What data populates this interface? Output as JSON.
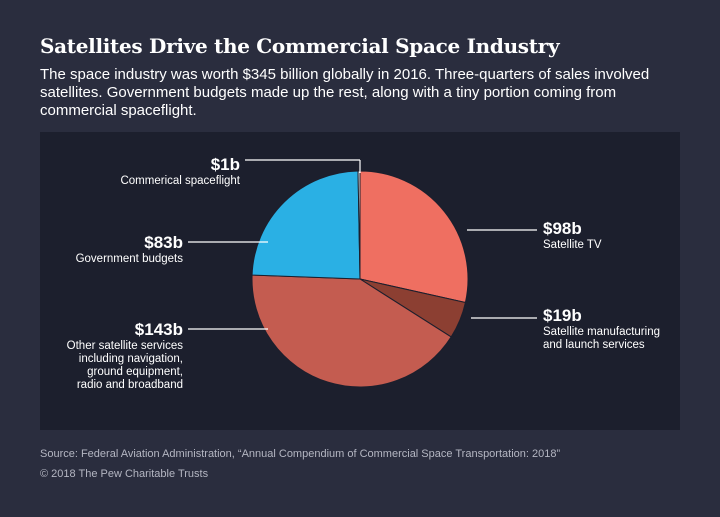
{
  "title": "Satellites Drive the Commercial Space Industry",
  "subtitle": "The space industry was worth $345 billion globally in 2016. Three-quarters of sales involved satellites. Government budgets made up the rest, along with a tiny portion coming from commercial spaceflight.",
  "source": "Source: Federal Aviation Administration, “Annual Compendium of Commercial Space Transportation: 2018”",
  "copyright": "© 2018 The Pew Charitable Trusts",
  "chart_data": {
    "type": "pie",
    "unit": "billion USD",
    "total": 345,
    "slices": [
      {
        "value_label": "$98b",
        "description": "Satellite TV",
        "value": 98,
        "color": "#ef6f61"
      },
      {
        "value_label": "$19b",
        "description": "Satellite manufacturing and launch services",
        "value": 19,
        "color": "#8c3f32"
      },
      {
        "value_label": "$143b",
        "description": "Other satellite services including navigation, ground equipment, radio and broadband",
        "value": 143,
        "color": "#c45c50"
      },
      {
        "value_label": "$83b",
        "description": "Government budgets",
        "value": 83,
        "color": "#2ab0e4"
      },
      {
        "value_label": "$1b",
        "description": "Commerical spaceflight",
        "value": 1,
        "color": "#e9ecef"
      }
    ]
  },
  "labels": {
    "satellite_tv": {
      "value": "$98b",
      "lines": [
        "Satellite TV"
      ]
    },
    "manufacturing": {
      "value": "$19b",
      "lines": [
        "Satellite manufacturing",
        "and launch services"
      ]
    },
    "other_services": {
      "value": "$143b",
      "lines": [
        "Other satellite services",
        "including navigation,",
        "ground equipment,",
        "radio and broadband"
      ]
    },
    "government": {
      "value": "$83b",
      "lines": [
        "Government budgets"
      ]
    },
    "spaceflight": {
      "value": "$1b",
      "lines": [
        "Commerical spaceflight"
      ]
    }
  }
}
